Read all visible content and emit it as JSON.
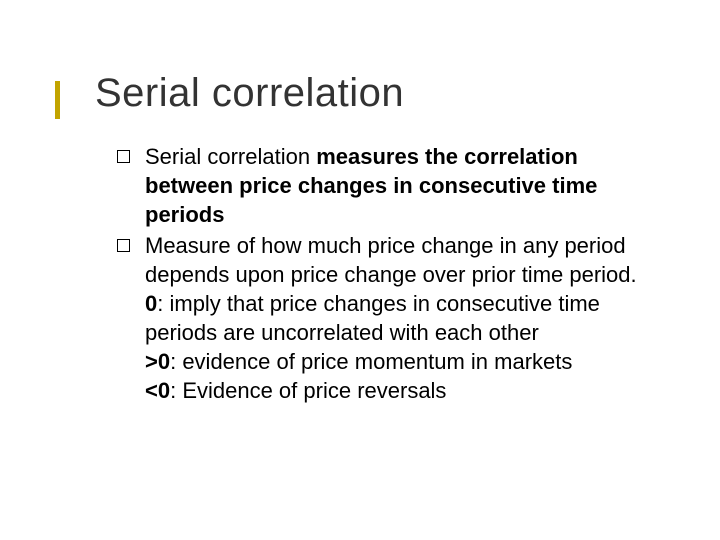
{
  "slide": {
    "title": "Serial correlation",
    "accent_color": "#c2a400",
    "title_color": "#333333",
    "body_color": "#000000",
    "background_color": "#ffffff",
    "title_fontsize": 40,
    "body_fontsize": 22,
    "bullets": [
      {
        "segments": [
          {
            "text": "Serial correlation ",
            "bold": false
          },
          {
            "text": "measures the correlation between price changes in consecutive time periods",
            "bold": true
          }
        ]
      },
      {
        "lines": [
          {
            "segments": [
              {
                "text": "Measure of how much price change in any period depends upon price change over prior time period.",
                "bold": false
              }
            ]
          },
          {
            "segments": [
              {
                "text": "0",
                "bold": true
              },
              {
                "text": ": imply that price changes in consecutive time periods are uncorrelated with each other",
                "bold": false
              }
            ]
          },
          {
            "segments": [
              {
                "text": ">0",
                "bold": true
              },
              {
                "text": ": evidence of price momentum in markets",
                "bold": false
              }
            ]
          },
          {
            "segments": [
              {
                "text": "<0",
                "bold": true
              },
              {
                "text": ": Evidence of price reversals",
                "bold": false
              }
            ]
          }
        ]
      }
    ]
  }
}
